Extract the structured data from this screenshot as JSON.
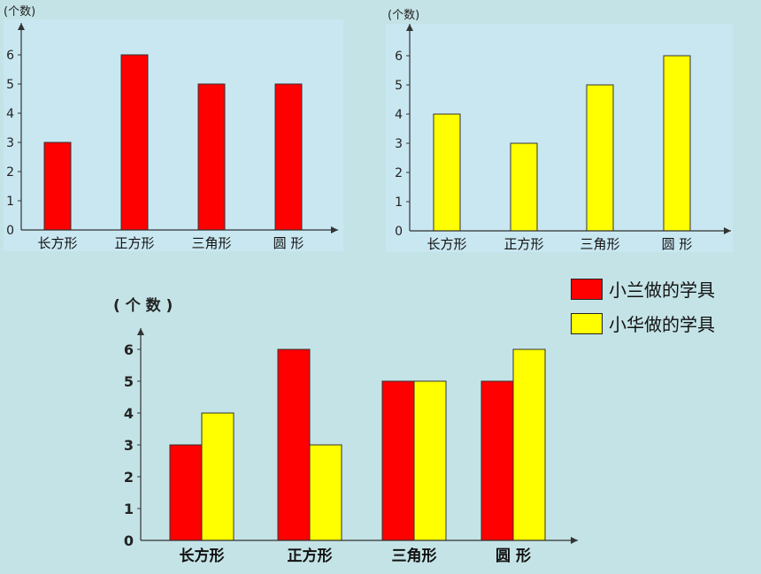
{
  "colors": {
    "background": "#c4e3e6",
    "panel": "#c9e7f1",
    "red": "#ff0000",
    "yellow": "#ffff00",
    "axis": "#333333"
  },
  "legend": {
    "items": [
      {
        "label": "小兰做的学具",
        "color": "#ff0000"
      },
      {
        "label": "小华做的学具",
        "color": "#ffff00"
      }
    ]
  },
  "chart_data": [
    {
      "type": "bar",
      "ylabel": "(个数)",
      "categories": [
        "长方形",
        "正方形",
        "三角形",
        "圆  形"
      ],
      "series": [
        {
          "values": [
            3,
            6,
            5,
            5
          ],
          "color": "#ff0000"
        }
      ],
      "yticks": [
        0,
        1,
        2,
        3,
        4,
        5,
        6
      ],
      "ylim": [
        0,
        7
      ],
      "grid": false
    },
    {
      "type": "bar",
      "ylabel": "(个数)",
      "categories": [
        "长方形",
        "正方形",
        "三角形",
        "圆  形"
      ],
      "series": [
        {
          "values": [
            4,
            3,
            5,
            6
          ],
          "color": "#ffff00"
        }
      ],
      "yticks": [
        0,
        1,
        2,
        3,
        4,
        5,
        6
      ],
      "ylim": [
        0,
        7
      ],
      "grid": false
    },
    {
      "type": "bar",
      "ylabel": "( 个 数 )",
      "categories": [
        "长方形",
        "正方形",
        "三角形",
        "圆  形"
      ],
      "series": [
        {
          "name": "小兰做的学具",
          "values": [
            3,
            6,
            5,
            5
          ],
          "color": "#ff0000"
        },
        {
          "name": "小华做的学具",
          "values": [
            4,
            3,
            5,
            6
          ],
          "color": "#ffff00"
        }
      ],
      "yticks": [
        0,
        1,
        2,
        3,
        4,
        5,
        6
      ],
      "ylim": [
        0,
        7
      ],
      "grid": false,
      "legend": "right"
    }
  ]
}
